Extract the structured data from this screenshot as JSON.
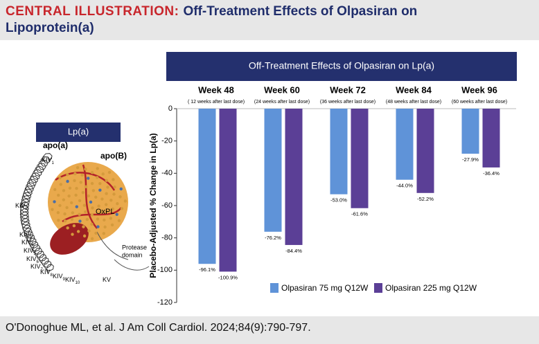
{
  "header": {
    "label": "CENTRAL ILLUSTRATION:",
    "title": "Off-Treatment Effects of Olpasiran on Lipoprotein(a)"
  },
  "diagram": {
    "title": "Lp(a)",
    "apoa": "apo(a)",
    "apob": "apo(B)",
    "oxpl": "OxPL",
    "protease": [
      "Protease",
      "domain"
    ],
    "kringles": [
      {
        "base": "KIV",
        "sub": "1"
      },
      {
        "base": "KIV",
        "sub": "2"
      },
      {
        "base": "KIV",
        "sub": "3"
      },
      {
        "base": "KIV",
        "sub": "4"
      },
      {
        "base": "KIV",
        "sub": "5"
      },
      {
        "base": "KIV",
        "sub": "6"
      },
      {
        "base": "KIV",
        "sub": "7"
      },
      {
        "base": "KIV",
        "sub": "8"
      },
      {
        "base": "KIV",
        "sub": "9"
      },
      {
        "base": "KIV",
        "sub": "10"
      },
      {
        "base": "KV",
        "sub": ""
      }
    ]
  },
  "chart_data": {
    "type": "bar",
    "title": "Off-Treatment Effects of Olpasiran on Lp(a)",
    "categories": [
      "Week 48",
      "Week 60",
      "Week 72",
      "Week 84",
      "Week 96"
    ],
    "category_notes": [
      "( 12 weeks after last dose)",
      "(24 weeks after last dose)",
      "(36 weeks after last dose)",
      "(48 weeks after last dose)",
      "(60 weeks after last dose)"
    ],
    "ylabel": "Placebo-Adjusted % Change in Lp(a)",
    "series": [
      {
        "name": "Olpasiran 75 mg Q12W",
        "color": "#5f93d8",
        "values": [
          -96.1,
          -76.2,
          -53.0,
          -44.0,
          -27.9
        ],
        "value_labels": [
          "-96.1%",
          "-76.2%",
          "-53.0%",
          "-44.0%",
          "-27.9%"
        ]
      },
      {
        "name": "Olpasiran 225 mg Q12W",
        "color": "#5b3f96",
        "values": [
          -100.9,
          -84.4,
          -61.6,
          -52.2,
          -36.4
        ],
        "value_labels": [
          "-100.9%",
          "-84.4%",
          "-61.6%",
          "-52.2%",
          "-36.4%"
        ]
      }
    ],
    "ylim": [
      -120,
      0
    ],
    "yticks": [
      0,
      -20,
      -40,
      -60,
      -80,
      -100,
      -120
    ]
  },
  "citation": "O'Donoghue ML, et al. J Am Coll Cardiol. 2024;84(9):790-797."
}
